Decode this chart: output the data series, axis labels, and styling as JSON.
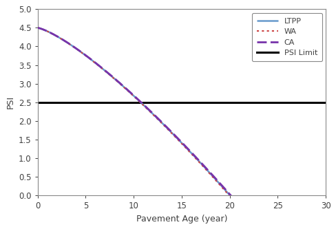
{
  "title": "",
  "xlabel": "Pavement Age (year)",
  "ylabel": "PSI",
  "xlim": [
    0,
    30
  ],
  "ylim": [
    0,
    5
  ],
  "xticks": [
    0,
    5,
    10,
    15,
    20,
    25,
    30
  ],
  "yticks": [
    0,
    0.5,
    1,
    1.5,
    2,
    2.5,
    3,
    3.5,
    4,
    4.5,
    5
  ],
  "psi_limit": 2.5,
  "psi_start": 4.5,
  "series": [
    {
      "label": "LTPP",
      "color": "#6699CC",
      "linestyle": "solid",
      "linewidth": 1.8
    },
    {
      "label": "WA",
      "color": "#CC4444",
      "linestyle": "dotted",
      "linewidth": 1.5
    },
    {
      "label": "CA",
      "color": "#7733AA",
      "linestyle": "dashed",
      "linewidth": 2.0
    }
  ],
  "rates": [
    0.0915,
    0.092,
    0.091
  ],
  "exponents": [
    1.3,
    1.3,
    1.3
  ],
  "psi_limit_color": "#000000",
  "psi_limit_linewidth": 2.2,
  "background_color": "#ffffff",
  "legend_loc": "upper right",
  "font_color": "#404040",
  "tick_color": "#404040",
  "spine_color": "#888888",
  "axis_label_fontsize": 9,
  "tick_fontsize": 8.5,
  "legend_fontsize": 8
}
